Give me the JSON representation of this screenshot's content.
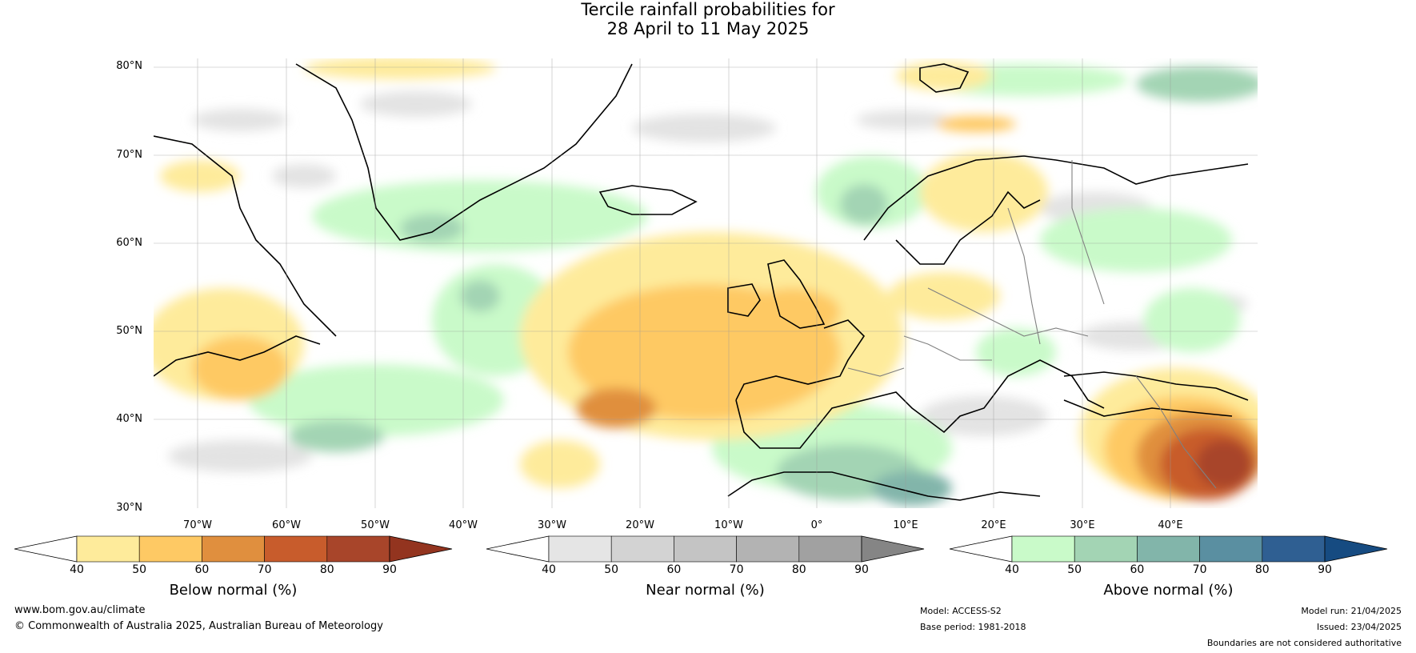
{
  "title": {
    "line1": "Tercile rainfall probabilities for",
    "line2": "28 April to 11 May 2025"
  },
  "map": {
    "lat_labels": [
      "80°N",
      "70°N",
      "60°N",
      "50°N",
      "40°N",
      "30°N"
    ],
    "lon_labels": [
      "70°W",
      "60°W",
      "50°W",
      "40°W",
      "30°W",
      "20°W",
      "10°W",
      "0°",
      "10°E",
      "20°E",
      "30°E",
      "40°E"
    ]
  },
  "colorbars": [
    {
      "title": "Below normal (%)",
      "ticks": [
        "40",
        "50",
        "60",
        "70",
        "80",
        "90"
      ],
      "colors": [
        "#ffffff",
        "#feeb9b",
        "#fec964",
        "#e08f3e",
        "#c85c2c",
        "#a8452a",
        "#93341f"
      ]
    },
    {
      "title": "Near normal (%)",
      "ticks": [
        "40",
        "50",
        "60",
        "70",
        "80",
        "90"
      ],
      "colors": [
        "#ffffff",
        "#e5e5e5",
        "#d3d3d3",
        "#c4c4c4",
        "#b3b3b3",
        "#a1a1a1",
        "#858585"
      ]
    },
    {
      "title": "Above normal (%)",
      "ticks": [
        "40",
        "50",
        "60",
        "70",
        "80",
        "90"
      ],
      "colors": [
        "#ffffff",
        "#c9fac9",
        "#a3d4b4",
        "#82b5aa",
        "#5a8fa1",
        "#2f5f92",
        "#164b81"
      ]
    }
  ],
  "footer": {
    "website": "www.bom.gov.au/climate",
    "copyright": "© Commonwealth of Australia 2025, Australian Bureau of Meteorology",
    "model": "Model: ACCESS-S2",
    "base_period": "Base period: 1981-2018",
    "model_run": "Model run: 21/04/2025",
    "issued": "Issued: 23/04/2025",
    "disclaimer": "Boundaries are not considered authoritative"
  }
}
